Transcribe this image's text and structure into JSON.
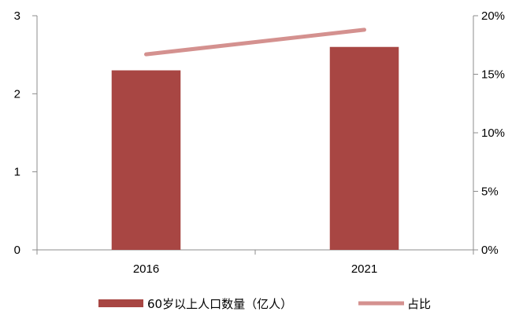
{
  "chart_data": {
    "type": "bar",
    "title": "",
    "xlabel": "",
    "categories": [
      "2016",
      "2021"
    ],
    "series": [
      {
        "name": "60岁以上人口数量（亿人）",
        "kind": "bar",
        "axis": "left",
        "values": [
          2.3,
          2.6
        ],
        "color": "#a84643"
      },
      {
        "name": "占比",
        "kind": "line",
        "axis": "right",
        "values": [
          0.167,
          0.188
        ],
        "color": "#d4918f"
      }
    ],
    "y_left": {
      "min": 0,
      "max": 3,
      "ticks": [
        "0",
        "1",
        "2",
        "3"
      ]
    },
    "y_right": {
      "min": 0,
      "max": 0.2,
      "ticks": [
        "0%",
        "5%",
        "10%",
        "15%",
        "20%"
      ]
    },
    "legend_position": "bottom"
  }
}
